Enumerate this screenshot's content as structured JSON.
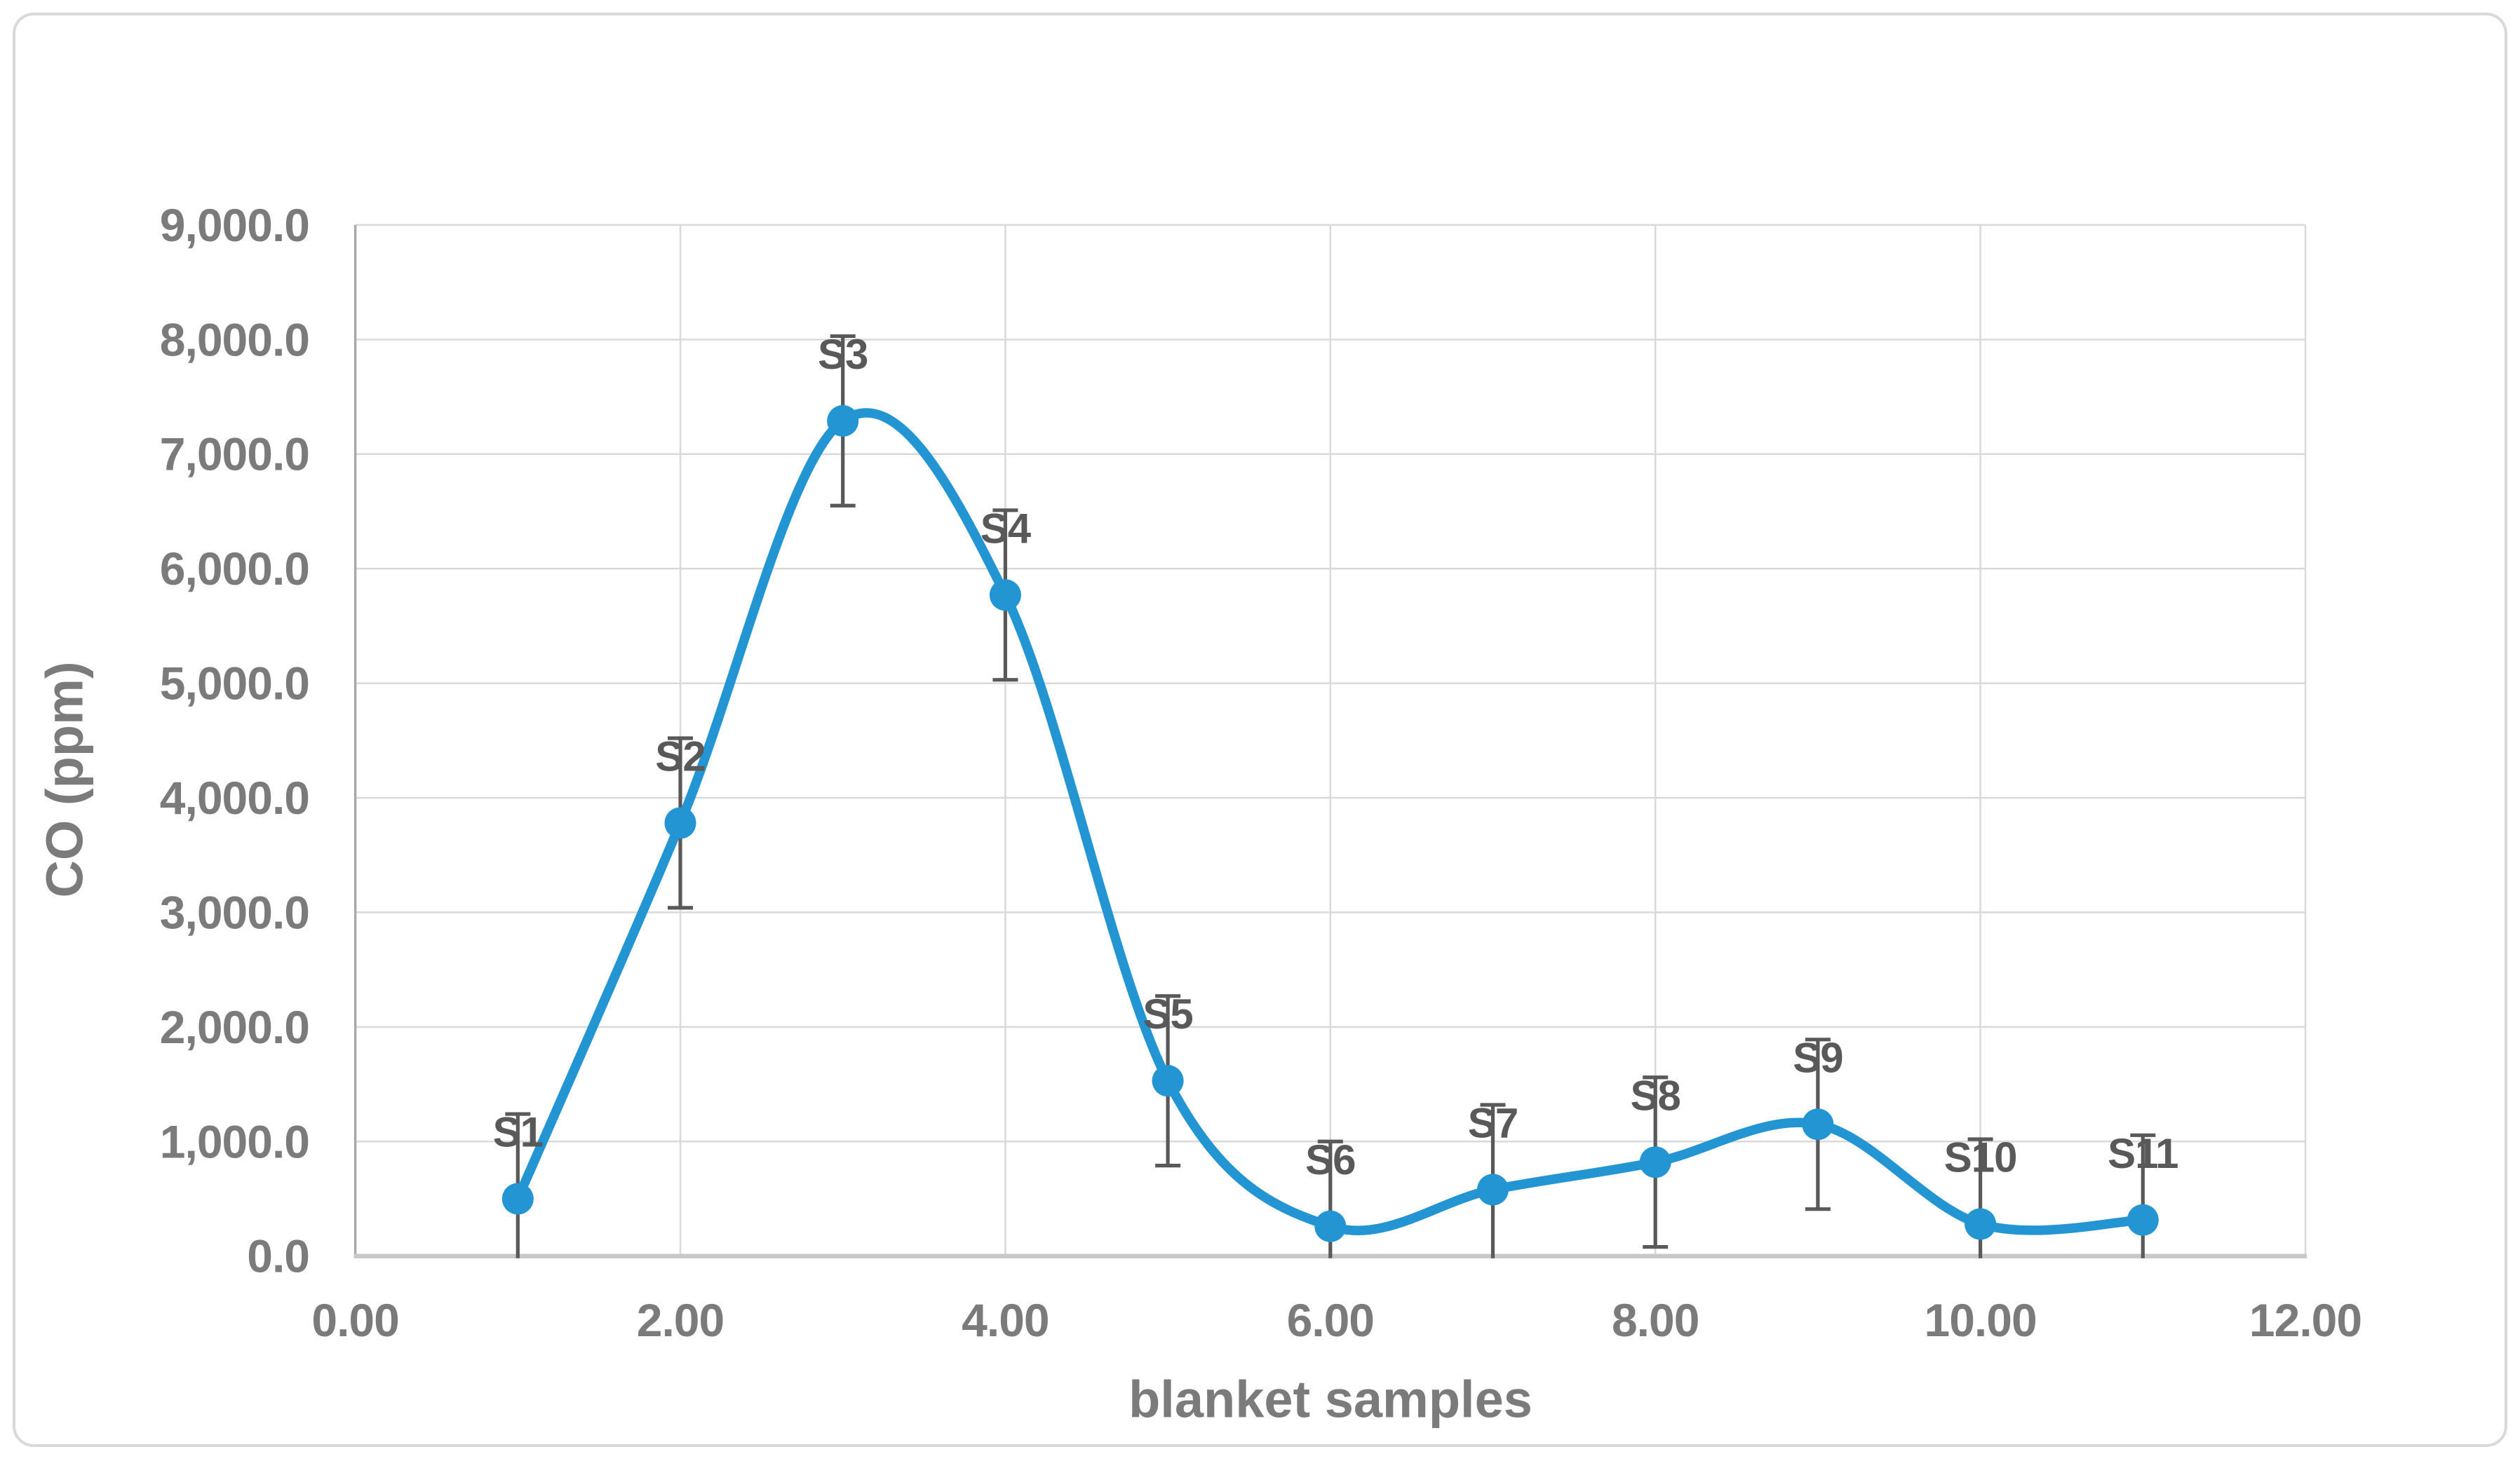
{
  "figure": {
    "background": "#FFFFFF",
    "frame_border_color": "#D9D9D9"
  },
  "chart_data": {
    "type": "line",
    "title": "",
    "xlabel": "blanket samples",
    "ylabel": "CO (ppm)",
    "smooth": true,
    "marker": "circle",
    "legend": "none",
    "grid": true,
    "xlim": [
      0,
      12
    ],
    "ylim": [
      0,
      9000
    ],
    "x": [
      1,
      2,
      3,
      4,
      5,
      6,
      7,
      8,
      9,
      10,
      11
    ],
    "labels": [
      "S1",
      "S2",
      "S3",
      "S4",
      "S5",
      "S6",
      "S7",
      "S8",
      "S9",
      "S10",
      "S11"
    ],
    "values": [
      500,
      3780,
      7290,
      5770,
      1530,
      260,
      580,
      820,
      1150,
      280,
      315
    ],
    "error_bars": {
      "plus": 740,
      "minus": 740,
      "clipped_at_zero": true
    },
    "x_ticks": [
      "0.00",
      "2.00",
      "4.00",
      "6.00",
      "8.00",
      "10.00",
      "12.00"
    ],
    "x_tick_values": [
      0,
      2,
      4,
      6,
      8,
      10,
      12
    ],
    "y_ticks": [
      "0.0",
      "1,000.0",
      "2,000.0",
      "3,000.0",
      "4,000.0",
      "5,000.0",
      "6,000.0",
      "7,000.0",
      "8,000.0",
      "9,000.0"
    ],
    "y_tick_values": [
      0,
      1000,
      2000,
      3000,
      4000,
      5000,
      6000,
      7000,
      8000,
      9000
    ],
    "colors": {
      "series": "#2495D3",
      "marker": "#2495D3",
      "error_bar": "#595959",
      "data_label": "#595959",
      "tick_label": "#7B7B7B",
      "axis_title": "#7B7B7B",
      "gridline": "#D9D9D9",
      "x_axis_line": "#C8C8C8",
      "y_axis_line": "#A9A9A9"
    }
  }
}
